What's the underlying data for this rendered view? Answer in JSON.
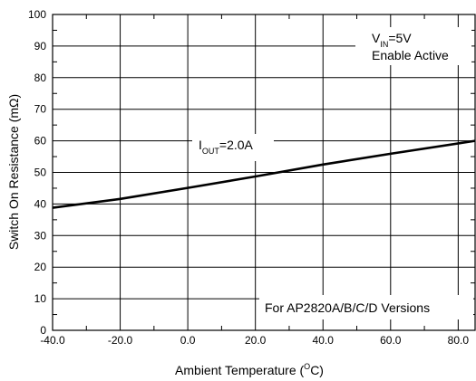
{
  "chart_data": {
    "type": "line",
    "title": "",
    "xlabel": "Ambient Temperature (",
    "xlabel_unit_sup": "O",
    "xlabel_unit_tail": "C)",
    "ylabel": "Switch On Resistance (mΩ)",
    "xlim": [
      -40,
      85
    ],
    "ylim": [
      0,
      100
    ],
    "x_ticks": [
      -40,
      -20,
      0,
      20,
      40,
      60,
      80
    ],
    "x_tick_labels": [
      "-40.0",
      "-20.0",
      "0.0",
      "20.0",
      "40.0",
      "60.0",
      "80.0"
    ],
    "y_ticks": [
      0,
      10,
      20,
      30,
      40,
      50,
      60,
      70,
      80,
      90,
      100
    ],
    "y_tick_labels": [
      "0",
      "10",
      "20",
      "30",
      "40",
      "50",
      "60",
      "70",
      "80",
      "90",
      "100"
    ],
    "grid": true,
    "series": [
      {
        "name": "IOUT=2.0A",
        "x": [
          -40,
          -20,
          0,
          20,
          40,
          60,
          85
        ],
        "y": [
          38.8,
          41.6,
          45.1,
          48.7,
          52.5,
          55.9,
          60.0
        ]
      }
    ],
    "annotations": {
      "series_label_main": "I",
      "series_label_sub": "OUT",
      "series_label_tail": "=2.0A",
      "vin_main": "V",
      "vin_sub": "IN",
      "vin_tail": "=5V",
      "enable": "Enable Active",
      "versions": "For AP2820A/B/C/D Versions"
    }
  }
}
